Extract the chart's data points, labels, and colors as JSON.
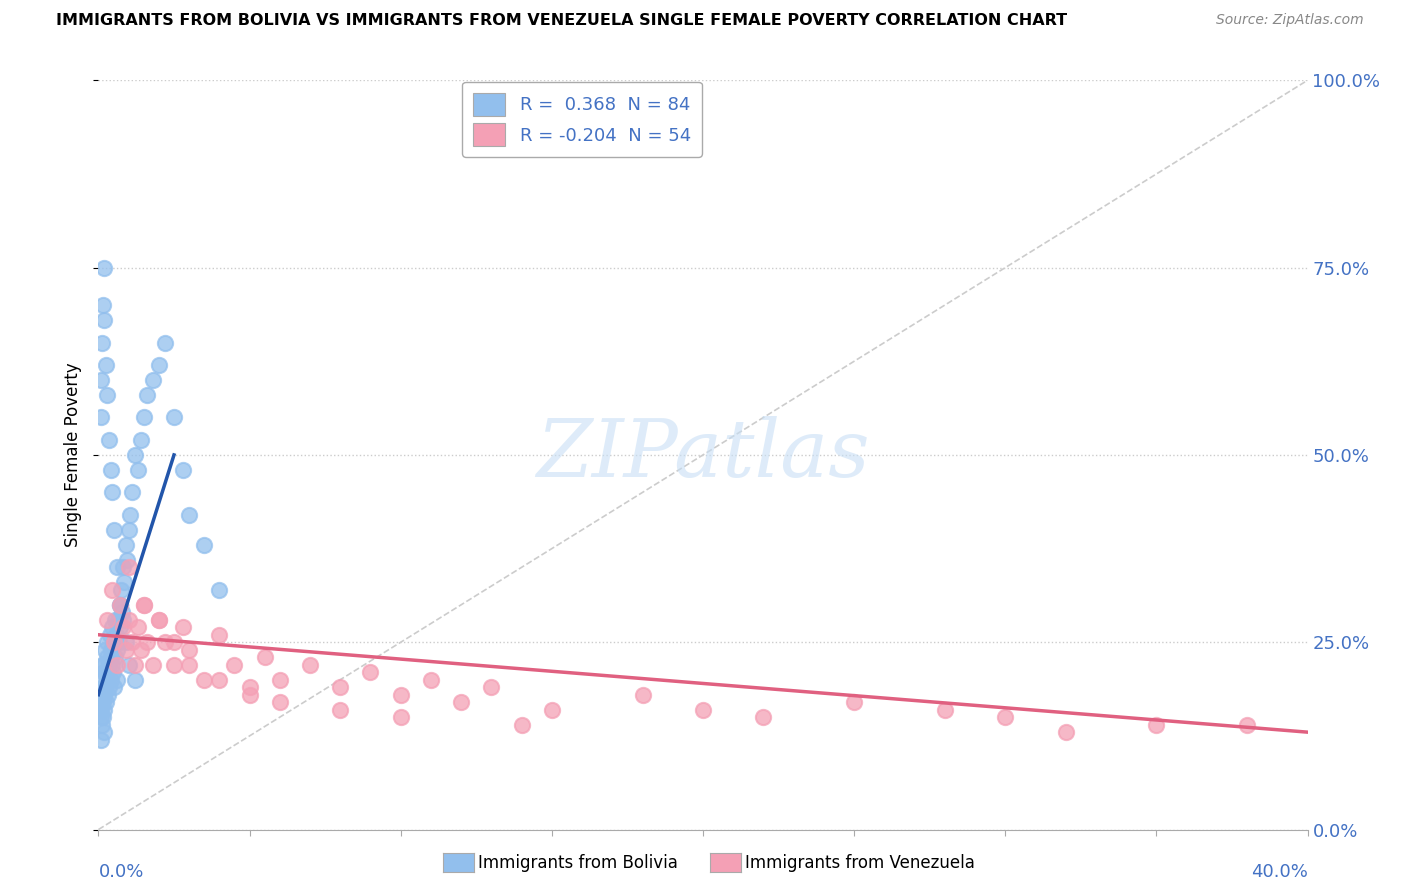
{
  "title": "IMMIGRANTS FROM BOLIVIA VS IMMIGRANTS FROM VENEZUELA SINGLE FEMALE POVERTY CORRELATION CHART",
  "source": "Source: ZipAtlas.com",
  "ylabel": "Single Female Poverty",
  "xlim": [
    0,
    40
  ],
  "ylim": [
    0,
    100
  ],
  "ytick_vals": [
    0,
    25,
    50,
    75,
    100
  ],
  "xtick_vals": [
    0,
    5,
    10,
    15,
    20,
    25,
    30,
    35,
    40
  ],
  "bolivia_R": 0.368,
  "bolivia_N": 84,
  "venezuela_R": -0.204,
  "venezuela_N": 54,
  "bolivia_color": "#92bfed",
  "venezuela_color": "#f4a0b5",
  "bolivia_line_color": "#2255aa",
  "venezuela_line_color": "#e06080",
  "legend_label_bolivia": "Immigrants from Bolivia",
  "legend_label_venezuela": "Immigrants from Venezuela",
  "bolivia_points_x": [
    0.05,
    0.07,
    0.08,
    0.1,
    0.1,
    0.12,
    0.12,
    0.13,
    0.14,
    0.15,
    0.15,
    0.17,
    0.18,
    0.18,
    0.2,
    0.2,
    0.22,
    0.22,
    0.25,
    0.25,
    0.28,
    0.3,
    0.3,
    0.32,
    0.35,
    0.35,
    0.38,
    0.4,
    0.4,
    0.42,
    0.45,
    0.45,
    0.48,
    0.5,
    0.5,
    0.55,
    0.55,
    0.58,
    0.6,
    0.62,
    0.65,
    0.68,
    0.7,
    0.72,
    0.75,
    0.78,
    0.8,
    0.85,
    0.9,
    0.95,
    1.0,
    1.05,
    1.1,
    1.2,
    1.3,
    1.4,
    1.5,
    1.6,
    1.8,
    2.0,
    2.2,
    2.5,
    2.8,
    3.0,
    3.5,
    4.0,
    0.08,
    0.1,
    0.12,
    0.15,
    0.18,
    0.2,
    0.25,
    0.3,
    0.35,
    0.4,
    0.45,
    0.5,
    0.6,
    0.7,
    0.8,
    0.9,
    1.0,
    1.2
  ],
  "bolivia_points_y": [
    18,
    15,
    12,
    20,
    16,
    22,
    18,
    14,
    17,
    19,
    15,
    21,
    18,
    13,
    22,
    16,
    19,
    24,
    21,
    17,
    23,
    20,
    25,
    18,
    22,
    19,
    26,
    23,
    20,
    24,
    22,
    27,
    21,
    25,
    19,
    28,
    23,
    26,
    24,
    20,
    28,
    25,
    30,
    27,
    32,
    29,
    35,
    33,
    38,
    36,
    40,
    42,
    45,
    50,
    48,
    52,
    55,
    58,
    60,
    62,
    65,
    55,
    48,
    42,
    38,
    32,
    55,
    60,
    65,
    70,
    75,
    68,
    62,
    58,
    52,
    48,
    45,
    40,
    35,
    30,
    28,
    25,
    22,
    20
  ],
  "venezuela_points_x": [
    0.3,
    0.45,
    0.5,
    0.6,
    0.7,
    0.8,
    0.9,
    1.0,
    1.1,
    1.2,
    1.3,
    1.4,
    1.5,
    1.6,
    1.8,
    2.0,
    2.2,
    2.5,
    2.8,
    3.0,
    3.5,
    4.0,
    4.5,
    5.0,
    5.5,
    6.0,
    7.0,
    8.0,
    9.0,
    10.0,
    11.0,
    12.0,
    13.0,
    15.0,
    18.0,
    22.0,
    25.0,
    28.0,
    30.0,
    35.0,
    1.0,
    1.5,
    2.0,
    2.5,
    3.0,
    4.0,
    5.0,
    6.0,
    8.0,
    10.0,
    14.0,
    20.0,
    32.0,
    38.0
  ],
  "venezuela_points_y": [
    28,
    32,
    25,
    22,
    30,
    27,
    24,
    28,
    25,
    22,
    27,
    24,
    30,
    25,
    22,
    28,
    25,
    22,
    27,
    24,
    20,
    26,
    22,
    19,
    23,
    20,
    22,
    19,
    21,
    18,
    20,
    17,
    19,
    16,
    18,
    15,
    17,
    16,
    15,
    14,
    35,
    30,
    28,
    25,
    22,
    20,
    18,
    17,
    16,
    15,
    14,
    16,
    13,
    14
  ],
  "bolivia_trend_x": [
    0.0,
    2.5
  ],
  "bolivia_trend_y": [
    18,
    50
  ],
  "venezuela_trend_x": [
    0.0,
    40.0
  ],
  "venezuela_trend_y": [
    26,
    13
  ]
}
